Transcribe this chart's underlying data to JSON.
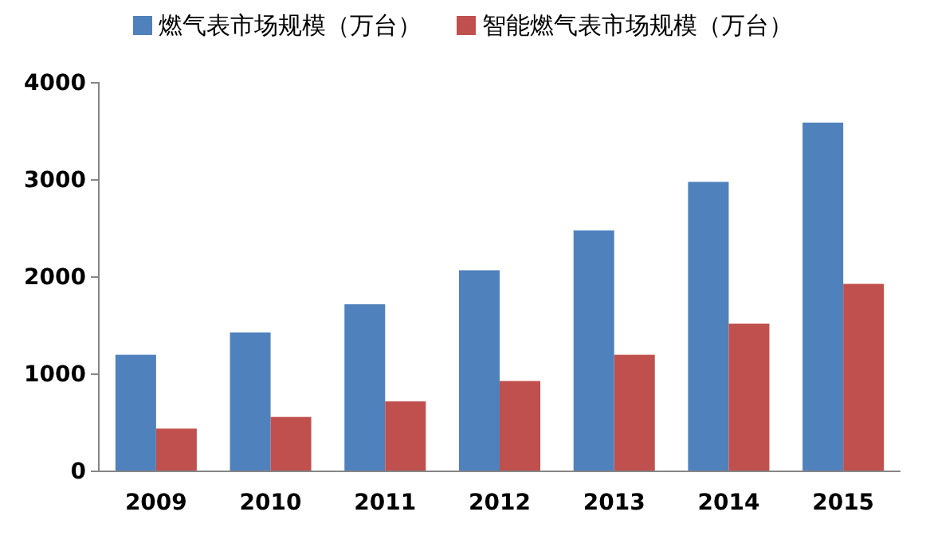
{
  "chart_data": {
    "type": "bar",
    "categories": [
      "2009",
      "2010",
      "2011",
      "2012",
      "2013",
      "2014",
      "2015"
    ],
    "series": [
      {
        "name": "燃气表市场规模（万台）",
        "color": "#4f81bd",
        "values": [
          1200,
          1430,
          1720,
          2070,
          2480,
          2980,
          3590
        ]
      },
      {
        "name": "智能燃气表市场规模（万台）",
        "color": "#c0504d",
        "values": [
          440,
          560,
          720,
          930,
          1200,
          1520,
          1930
        ]
      }
    ],
    "ylim": [
      0,
      4000
    ],
    "yticks": [
      0,
      1000,
      2000,
      3000,
      4000
    ],
    "grid": false,
    "legend": "top"
  }
}
